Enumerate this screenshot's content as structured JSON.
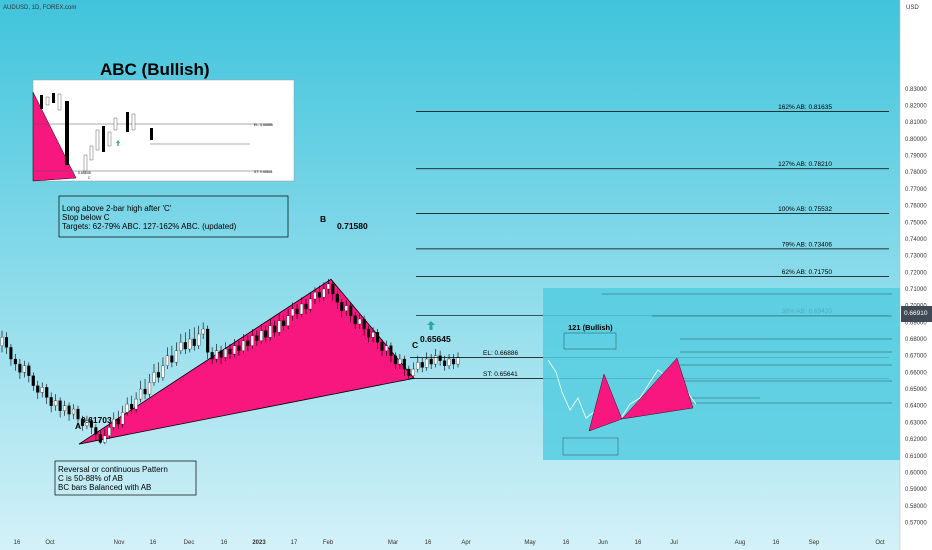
{
  "header": {
    "symbol": "AUDUSD, 1D, FOREX.com",
    "currency": "USD",
    "last_price": "0.66910"
  },
  "colors": {
    "background_top": "#40c4dc",
    "background_bottom": "#d4f1f8",
    "pattern_fill": "#f7177f",
    "candle_up": "#ffffff",
    "candle_down": "#000000",
    "arrow": "#2aa6a6"
  },
  "panels": {
    "abc_title": "ABC (Bullish)",
    "inset_121_title": "121 (Bullish)",
    "inset_abc_el": "EL: 0.66886",
    "inset_abc_st": "ST: 0.65641",
    "inset_abc_c": "0.65645",
    "inset_abc_c_letter": "C"
  },
  "notes": {
    "box1": [
      "Long above 2-bar high after 'C'",
      "Stop below C",
      "Targets:  62-79% ABC. 127-162% ABC. (updated)"
    ],
    "box2": [
      "Reversal or continuous Pattern",
      "C is 50-88% of AB",
      "BC bars Balanced with AB"
    ]
  },
  "points": {
    "A": {
      "letter": "A",
      "value": "0.61703"
    },
    "B": {
      "letter": "B",
      "value": "0.71580"
    },
    "C": {
      "letter": "C",
      "value": "0.65645"
    }
  },
  "chart_data": {
    "type": "candlestick",
    "title": "",
    "xlabel": "",
    "ylabel": "",
    "ylim": [
      0.565,
      0.845
    ],
    "y_ticks": [
      "0.83000",
      "0.82000",
      "0.81000",
      "0.80000",
      "0.79000",
      "0.78000",
      "0.77000",
      "0.76000",
      "0.75000",
      "0.74000",
      "0.73000",
      "0.72000",
      "0.71000",
      "0.70000",
      "0.69000",
      "0.68000",
      "0.67000",
      "0.66000",
      "0.65000",
      "0.64000",
      "0.63000",
      "0.62000",
      "0.61000",
      "0.60000",
      "0.59000",
      "0.58000",
      "0.57000"
    ],
    "x_ticks": [
      "16",
      "Oct",
      "Nov",
      "16",
      "Dec",
      "16",
      "2023",
      "17",
      "Feb",
      "Mar",
      "16",
      "Apr",
      "May",
      "16",
      "Jun",
      "16",
      "Jul",
      "Aug",
      "16",
      "Sep",
      "Oct"
    ],
    "levels": [
      {
        "label": "162% AB: 0.81635",
        "value": 0.81635
      },
      {
        "label": "127% AB: 0.78210",
        "value": 0.7821
      },
      {
        "label": "100% AB: 0.75532",
        "value": 0.75532
      },
      {
        "label": "79% AB: 0.73406",
        "value": 0.73406
      },
      {
        "label": "62% AB: 0.71750",
        "value": 0.7175
      },
      {
        "label": "38% AB: 0.69420",
        "value": 0.6942
      },
      {
        "label": "EL: 0.66886",
        "value": 0.66886
      },
      {
        "label": "ST: 0.65641",
        "value": 0.65641
      }
    ],
    "pattern": [
      {
        "point": "A",
        "date": "2022-10-13",
        "value": 0.61703
      },
      {
        "point": "B",
        "date": "2023-02-02",
        "value": 0.7158
      },
      {
        "point": "C",
        "date": "2023-03-10",
        "value": 0.65645
      }
    ],
    "candles": [
      {
        "o": 0.676,
        "c": 0.681,
        "h": 0.685,
        "l": 0.672
      },
      {
        "o": 0.681,
        "c": 0.675,
        "h": 0.684,
        "l": 0.671
      },
      {
        "o": 0.675,
        "c": 0.668,
        "h": 0.677,
        "l": 0.664
      },
      {
        "o": 0.668,
        "c": 0.665,
        "h": 0.671,
        "l": 0.661
      },
      {
        "o": 0.665,
        "c": 0.66,
        "h": 0.668,
        "l": 0.656
      },
      {
        "o": 0.66,
        "c": 0.664,
        "h": 0.667,
        "l": 0.657
      },
      {
        "o": 0.664,
        "c": 0.658,
        "h": 0.666,
        "l": 0.654
      },
      {
        "o": 0.658,
        "c": 0.652,
        "h": 0.66,
        "l": 0.649
      },
      {
        "o": 0.652,
        "c": 0.648,
        "h": 0.655,
        "l": 0.644
      },
      {
        "o": 0.648,
        "c": 0.651,
        "h": 0.654,
        "l": 0.645
      },
      {
        "o": 0.651,
        "c": 0.645,
        "h": 0.653,
        "l": 0.641
      },
      {
        "o": 0.645,
        "c": 0.64,
        "h": 0.648,
        "l": 0.636
      },
      {
        "o": 0.64,
        "c": 0.643,
        "h": 0.647,
        "l": 0.637
      },
      {
        "o": 0.643,
        "c": 0.637,
        "h": 0.645,
        "l": 0.633
      },
      {
        "o": 0.637,
        "c": 0.64,
        "h": 0.643,
        "l": 0.634
      },
      {
        "o": 0.64,
        "c": 0.635,
        "h": 0.642,
        "l": 0.631
      },
      {
        "o": 0.635,
        "c": 0.638,
        "h": 0.641,
        "l": 0.632
      },
      {
        "o": 0.638,
        "c": 0.632,
        "h": 0.64,
        "l": 0.628
      },
      {
        "o": 0.632,
        "c": 0.628,
        "h": 0.634,
        "l": 0.625
      },
      {
        "o": 0.628,
        "c": 0.631,
        "h": 0.634,
        "l": 0.626
      },
      {
        "o": 0.631,
        "c": 0.627,
        "h": 0.633,
        "l": 0.623
      },
      {
        "o": 0.627,
        "c": 0.623,
        "h": 0.629,
        "l": 0.619
      },
      {
        "o": 0.623,
        "c": 0.618,
        "h": 0.625,
        "l": 0.617
      },
      {
        "o": 0.618,
        "c": 0.622,
        "h": 0.626,
        "l": 0.617
      },
      {
        "o": 0.622,
        "c": 0.627,
        "h": 0.63,
        "l": 0.62
      },
      {
        "o": 0.627,
        "c": 0.632,
        "h": 0.636,
        "l": 0.625
      },
      {
        "o": 0.632,
        "c": 0.629,
        "h": 0.637,
        "l": 0.626
      },
      {
        "o": 0.629,
        "c": 0.636,
        "h": 0.64,
        "l": 0.627
      },
      {
        "o": 0.636,
        "c": 0.641,
        "h": 0.645,
        "l": 0.634
      },
      {
        "o": 0.641,
        "c": 0.638,
        "h": 0.646,
        "l": 0.635
      },
      {
        "o": 0.638,
        "c": 0.644,
        "h": 0.648,
        "l": 0.636
      },
      {
        "o": 0.644,
        "c": 0.65,
        "h": 0.655,
        "l": 0.642
      },
      {
        "o": 0.65,
        "c": 0.647,
        "h": 0.656,
        "l": 0.644
      },
      {
        "o": 0.647,
        "c": 0.654,
        "h": 0.659,
        "l": 0.645
      },
      {
        "o": 0.654,
        "c": 0.66,
        "h": 0.665,
        "l": 0.652
      },
      {
        "o": 0.66,
        "c": 0.657,
        "h": 0.666,
        "l": 0.654
      },
      {
        "o": 0.657,
        "c": 0.664,
        "h": 0.669,
        "l": 0.655
      },
      {
        "o": 0.664,
        "c": 0.67,
        "h": 0.675,
        "l": 0.662
      },
      {
        "o": 0.67,
        "c": 0.666,
        "h": 0.676,
        "l": 0.663
      },
      {
        "o": 0.666,
        "c": 0.673,
        "h": 0.678,
        "l": 0.664
      },
      {
        "o": 0.673,
        "c": 0.678,
        "h": 0.683,
        "l": 0.671
      },
      {
        "o": 0.678,
        "c": 0.674,
        "h": 0.684,
        "l": 0.671
      },
      {
        "o": 0.674,
        "c": 0.68,
        "h": 0.686,
        "l": 0.672
      },
      {
        "o": 0.68,
        "c": 0.676,
        "h": 0.687,
        "l": 0.673
      },
      {
        "o": 0.676,
        "c": 0.683,
        "h": 0.688,
        "l": 0.674
      },
      {
        "o": 0.683,
        "c": 0.686,
        "h": 0.69,
        "l": 0.68
      },
      {
        "o": 0.686,
        "c": 0.672,
        "h": 0.688,
        "l": 0.668
      },
      {
        "o": 0.672,
        "c": 0.668,
        "h": 0.675,
        "l": 0.665
      },
      {
        "o": 0.668,
        "c": 0.673,
        "h": 0.677,
        "l": 0.666
      },
      {
        "o": 0.673,
        "c": 0.669,
        "h": 0.676,
        "l": 0.665
      },
      {
        "o": 0.669,
        "c": 0.674,
        "h": 0.678,
        "l": 0.667
      },
      {
        "o": 0.674,
        "c": 0.671,
        "h": 0.677,
        "l": 0.668
      },
      {
        "o": 0.671,
        "c": 0.676,
        "h": 0.68,
        "l": 0.669
      },
      {
        "o": 0.676,
        "c": 0.673,
        "h": 0.679,
        "l": 0.67
      },
      {
        "o": 0.673,
        "c": 0.679,
        "h": 0.683,
        "l": 0.671
      },
      {
        "o": 0.679,
        "c": 0.676,
        "h": 0.682,
        "l": 0.673
      },
      {
        "o": 0.676,
        "c": 0.682,
        "h": 0.686,
        "l": 0.674
      },
      {
        "o": 0.682,
        "c": 0.679,
        "h": 0.685,
        "l": 0.676
      },
      {
        "o": 0.679,
        "c": 0.685,
        "h": 0.689,
        "l": 0.677
      },
      {
        "o": 0.685,
        "c": 0.681,
        "h": 0.688,
        "l": 0.678
      },
      {
        "o": 0.681,
        "c": 0.688,
        "h": 0.692,
        "l": 0.679
      },
      {
        "o": 0.688,
        "c": 0.684,
        "h": 0.691,
        "l": 0.681
      },
      {
        "o": 0.684,
        "c": 0.691,
        "h": 0.695,
        "l": 0.682
      },
      {
        "o": 0.691,
        "c": 0.688,
        "h": 0.694,
        "l": 0.685
      },
      {
        "o": 0.688,
        "c": 0.694,
        "h": 0.698,
        "l": 0.686
      },
      {
        "o": 0.694,
        "c": 0.698,
        "h": 0.702,
        "l": 0.691
      },
      {
        "o": 0.698,
        "c": 0.695,
        "h": 0.701,
        "l": 0.692
      },
      {
        "o": 0.695,
        "c": 0.701,
        "h": 0.705,
        "l": 0.693
      },
      {
        "o": 0.701,
        "c": 0.698,
        "h": 0.704,
        "l": 0.695
      },
      {
        "o": 0.698,
        "c": 0.704,
        "h": 0.708,
        "l": 0.696
      },
      {
        "o": 0.704,
        "c": 0.708,
        "h": 0.711,
        "l": 0.701
      },
      {
        "o": 0.708,
        "c": 0.705,
        "h": 0.712,
        "l": 0.702
      },
      {
        "o": 0.705,
        "c": 0.71,
        "h": 0.714,
        "l": 0.703
      },
      {
        "o": 0.71,
        "c": 0.713,
        "h": 0.716,
        "l": 0.707
      },
      {
        "o": 0.713,
        "c": 0.707,
        "h": 0.715,
        "l": 0.703
      },
      {
        "o": 0.707,
        "c": 0.702,
        "h": 0.709,
        "l": 0.698
      },
      {
        "o": 0.702,
        "c": 0.697,
        "h": 0.704,
        "l": 0.693
      },
      {
        "o": 0.697,
        "c": 0.7,
        "h": 0.703,
        "l": 0.694
      },
      {
        "o": 0.7,
        "c": 0.694,
        "h": 0.702,
        "l": 0.69
      },
      {
        "o": 0.694,
        "c": 0.689,
        "h": 0.696,
        "l": 0.686
      },
      {
        "o": 0.689,
        "c": 0.692,
        "h": 0.695,
        "l": 0.686
      },
      {
        "o": 0.692,
        "c": 0.686,
        "h": 0.694,
        "l": 0.682
      },
      {
        "o": 0.686,
        "c": 0.681,
        "h": 0.688,
        "l": 0.678
      },
      {
        "o": 0.681,
        "c": 0.684,
        "h": 0.687,
        "l": 0.678
      },
      {
        "o": 0.684,
        "c": 0.678,
        "h": 0.686,
        "l": 0.674
      },
      {
        "o": 0.678,
        "c": 0.673,
        "h": 0.68,
        "l": 0.67
      },
      {
        "o": 0.673,
        "c": 0.676,
        "h": 0.679,
        "l": 0.67
      },
      {
        "o": 0.676,
        "c": 0.67,
        "h": 0.678,
        "l": 0.666
      },
      {
        "o": 0.67,
        "c": 0.665,
        "h": 0.672,
        "l": 0.662
      },
      {
        "o": 0.665,
        "c": 0.668,
        "h": 0.671,
        "l": 0.662
      },
      {
        "o": 0.668,
        "c": 0.662,
        "h": 0.67,
        "l": 0.658
      },
      {
        "o": 0.662,
        "c": 0.658,
        "h": 0.664,
        "l": 0.656
      },
      {
        "o": 0.658,
        "c": 0.662,
        "h": 0.666,
        "l": 0.656
      },
      {
        "o": 0.662,
        "c": 0.666,
        "h": 0.67,
        "l": 0.66
      },
      {
        "o": 0.666,
        "c": 0.663,
        "h": 0.669,
        "l": 0.66
      },
      {
        "o": 0.663,
        "c": 0.668,
        "h": 0.672,
        "l": 0.661
      },
      {
        "o": 0.668,
        "c": 0.665,
        "h": 0.671,
        "l": 0.662
      },
      {
        "o": 0.665,
        "c": 0.67,
        "h": 0.674,
        "l": 0.663
      },
      {
        "o": 0.67,
        "c": 0.667,
        "h": 0.673,
        "l": 0.664
      },
      {
        "o": 0.667,
        "c": 0.664,
        "h": 0.67,
        "l": 0.661
      },
      {
        "o": 0.664,
        "c": 0.668,
        "h": 0.671,
        "l": 0.662
      },
      {
        "o": 0.668,
        "c": 0.665,
        "h": 0.671,
        "l": 0.662
      },
      {
        "o": 0.665,
        "c": 0.669,
        "h": 0.672,
        "l": 0.663
      }
    ]
  }
}
